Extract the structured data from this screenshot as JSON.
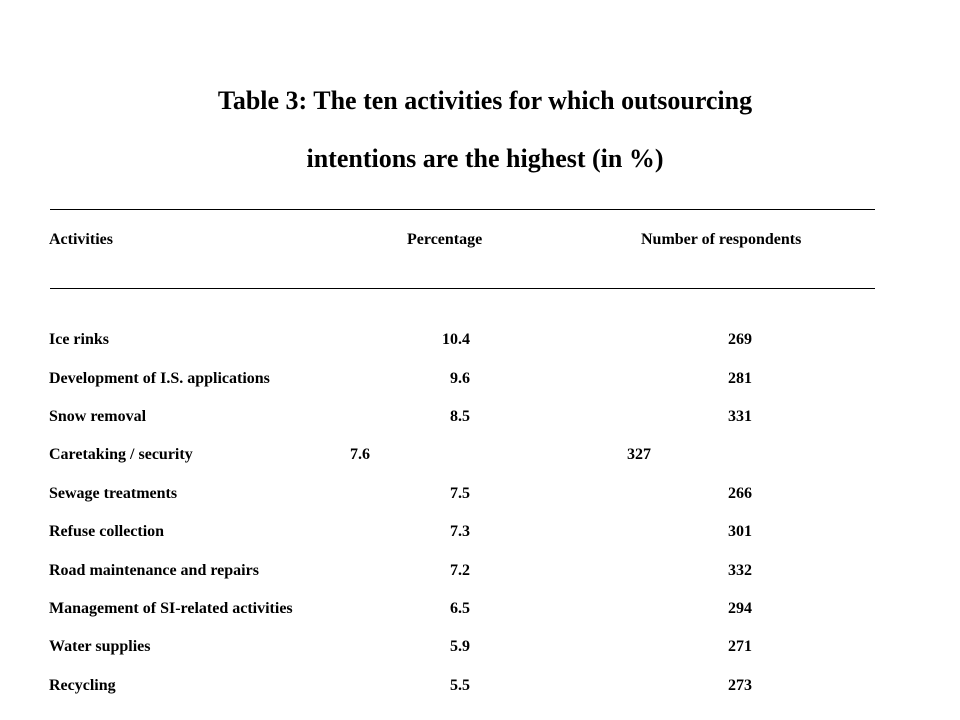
{
  "title": {
    "line1": "Table 3: The ten activities for which outsourcing",
    "line2": "intentions are the highest (in %)"
  },
  "table": {
    "headers": [
      "Activities",
      "Percentage",
      "Number of respondents"
    ],
    "rows": [
      {
        "activity": "Ice rinks",
        "percentage": "10.4",
        "respondents": "269"
      },
      {
        "activity": "Development of I.S. applications",
        "percentage": "9.6",
        "respondents": "281"
      },
      {
        "activity": "Snow removal",
        "percentage": "8.5",
        "respondents": "331"
      },
      {
        "activity": "Caretaking / security",
        "percentage": "7.6",
        "respondents": "327"
      },
      {
        "activity": "Sewage treatments",
        "percentage": "7.5",
        "respondents": "266"
      },
      {
        "activity": "Refuse collection",
        "percentage": "7.3",
        "respondents": "301"
      },
      {
        "activity": "Road maintenance and repairs",
        "percentage": "7.2",
        "respondents": "332"
      },
      {
        "activity": "Management of SI-related activities",
        "percentage": "6.5",
        "respondents": "294"
      },
      {
        "activity": "Water supplies",
        "percentage": "5.9",
        "respondents": "271"
      },
      {
        "activity": "Recycling",
        "percentage": "5.5",
        "respondents": "273"
      }
    ]
  }
}
